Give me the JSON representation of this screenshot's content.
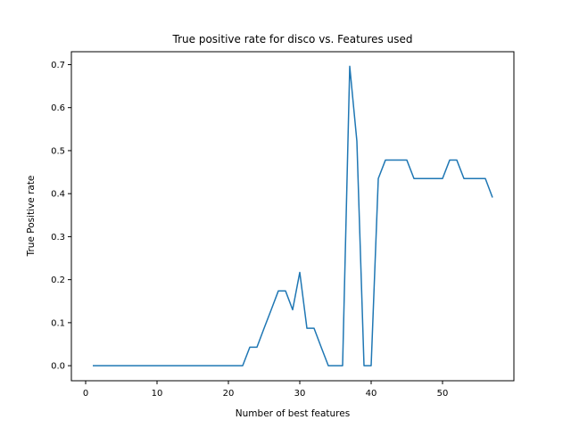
{
  "chart_data": {
    "type": "line",
    "title": "True positive rate for disco vs. Features used",
    "xlabel": "Number of best features",
    "ylabel": "True Positive rate",
    "xlim": [
      -2,
      60
    ],
    "ylim": [
      -0.035,
      0.73
    ],
    "xticks": [
      0,
      10,
      20,
      30,
      40,
      50
    ],
    "yticks": [
      0.0,
      0.1,
      0.2,
      0.3,
      0.4,
      0.5,
      0.6,
      0.7
    ],
    "grid": false,
    "color": "#1f77b4",
    "series": [
      {
        "x": [
          1,
          2,
          3,
          4,
          5,
          6,
          7,
          8,
          9,
          10,
          11,
          12,
          13,
          14,
          15,
          16,
          17,
          18,
          19,
          20,
          21,
          22,
          23,
          24,
          25,
          26,
          27,
          28,
          29,
          30,
          31,
          32,
          33,
          34,
          35,
          36,
          37,
          38,
          39,
          40,
          41,
          42,
          43,
          44,
          45,
          46,
          47,
          48,
          49,
          50,
          51,
          52,
          53,
          54,
          55,
          56,
          57
        ],
        "y": [
          0,
          0,
          0,
          0,
          0,
          0,
          0,
          0,
          0,
          0,
          0,
          0,
          0,
          0,
          0,
          0,
          0,
          0,
          0,
          0,
          0,
          0,
          0.043,
          0.043,
          0.087,
          0.13,
          0.174,
          0.174,
          0.13,
          0.217,
          0.087,
          0.087,
          0.043,
          0,
          0,
          0,
          0.696,
          0.522,
          0,
          0,
          0.435,
          0.478,
          0.478,
          0.478,
          0.478,
          0.435,
          0.435,
          0.435,
          0.435,
          0.435,
          0.478,
          0.478,
          0.435,
          0.435,
          0.435,
          0.435,
          0.391
        ]
      }
    ]
  }
}
